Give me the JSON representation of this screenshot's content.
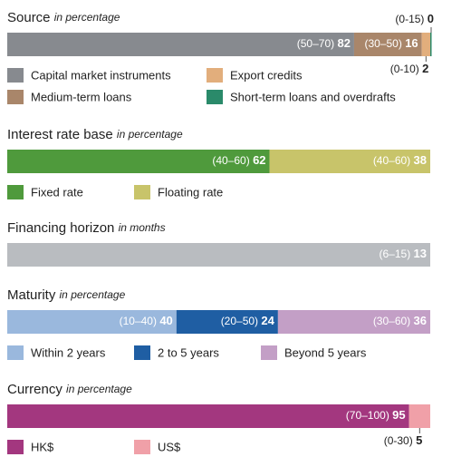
{
  "chart_data": [
    {
      "type": "bar",
      "orientation": "horizontal",
      "stacked": true,
      "title": "Source",
      "subtitle": "in percentage",
      "xlim": [
        0,
        100
      ],
      "series": [
        {
          "name": "Capital market instruments",
          "color": "#878a8f",
          "values": [
            82
          ],
          "range_labels": [
            "(50–70)"
          ]
        },
        {
          "name": "Medium-term loans",
          "color": "#a9866a",
          "values": [
            16
          ],
          "range_labels": [
            "(30–50)"
          ]
        },
        {
          "name": "Export credits",
          "color": "#e2ae7c",
          "values": [
            2
          ],
          "range_labels": [
            "(0-10)"
          ]
        },
        {
          "name": "Short-term loans and overdrafts",
          "color": "#2a8a6a",
          "values": [
            0
          ],
          "range_labels": [
            "(0-15)"
          ]
        }
      ]
    },
    {
      "type": "bar",
      "orientation": "horizontal",
      "stacked": true,
      "title": "Interest rate base",
      "subtitle": "in percentage",
      "xlim": [
        0,
        100
      ],
      "series": [
        {
          "name": "Fixed rate",
          "color": "#4f9a3c",
          "values": [
            62
          ],
          "range_labels": [
            "(40–60)"
          ]
        },
        {
          "name": "Floating rate",
          "color": "#c8c46a",
          "values": [
            38
          ],
          "range_labels": [
            "(40–60)"
          ]
        }
      ]
    },
    {
      "type": "bar",
      "orientation": "horizontal",
      "stacked": true,
      "title": "Financing horizon",
      "subtitle": "in months",
      "xlim": [
        0,
        13
      ],
      "series": [
        {
          "color": "#b9bcc0",
          "values": [
            13
          ],
          "range_labels": [
            "(6–15)"
          ]
        }
      ]
    },
    {
      "type": "bar",
      "orientation": "horizontal",
      "stacked": true,
      "title": "Maturity",
      "subtitle": "in percentage",
      "xlim": [
        0,
        100
      ],
      "series": [
        {
          "name": "Within 2 years",
          "color": "#9ab8dd",
          "values": [
            40
          ],
          "range_labels": [
            "(10–40)"
          ]
        },
        {
          "name": "2 to 5 years",
          "color": "#1f5ea3",
          "values": [
            24
          ],
          "range_labels": [
            "(20–50)"
          ]
        },
        {
          "name": "Beyond 5 years",
          "color": "#c39fc6",
          "values": [
            36
          ],
          "range_labels": [
            "(30–60)"
          ]
        }
      ]
    },
    {
      "type": "bar",
      "orientation": "horizontal",
      "stacked": true,
      "title": "Currency",
      "subtitle": "in percentage",
      "xlim": [
        0,
        100
      ],
      "series": [
        {
          "name": "HK$",
          "color": "#a3377f",
          "values": [
            95
          ],
          "range_labels": [
            "(70–100)"
          ]
        },
        {
          "name": "US$",
          "color": "#f0a0a8",
          "values": [
            5
          ],
          "range_labels": [
            "(0-30)"
          ]
        }
      ]
    }
  ]
}
